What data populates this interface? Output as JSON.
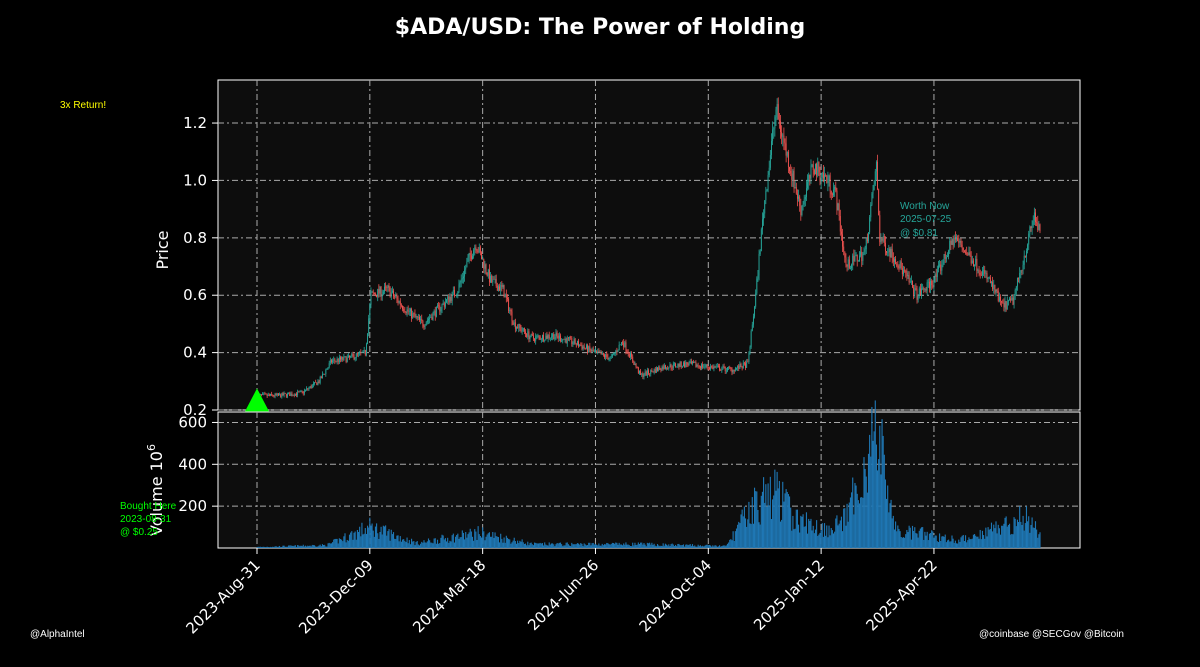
{
  "page": {
    "title": "$ADA/USD: The Power of Holding",
    "credit_left": "@AlphaIntel",
    "credit_right": "@coinbase @SECGov @Bitcoin"
  },
  "annotations": {
    "return_text": "3x Return!",
    "bought_lines": [
      "Bought Here",
      "2023-08-31",
      "@ $0.25"
    ],
    "worth_lines": [
      "Worth Now",
      "2025-07-25",
      "@ $0.81"
    ]
  },
  "colors": {
    "up": "#26a69a",
    "down": "#ef5350",
    "volume": "#1f77b4",
    "marker": "#00ff00",
    "return_text": "#ffff00",
    "bought_text": "#00ff00",
    "worth_text": "#26a69a",
    "panel_bg": "#0d0d0d"
  },
  "chart_data": {
    "type": "candlestick",
    "title": "$ADA/USD: The Power of Holding",
    "x_range": [
      "2023-08-31",
      "2025-07-25"
    ],
    "x_ticks": [
      "2023-Aug-31",
      "2023-Dec-09",
      "2024-Mar-18",
      "2024-Jun-26",
      "2024-Oct-04",
      "2025-Jan-12",
      "2025-Apr-22"
    ],
    "price_panel": {
      "ylabel": "Price",
      "ylim": [
        0.2,
        1.35
      ],
      "yticks": [
        "0.2",
        "0.4",
        "0.6",
        "0.8",
        "1.0",
        "1.2"
      ],
      "close_path": [
        [
          "2023-08-31",
          0.25
        ],
        [
          "2023-09-20",
          0.25
        ],
        [
          "2023-10-10",
          0.26
        ],
        [
          "2023-10-25",
          0.3
        ],
        [
          "2023-11-05",
          0.37
        ],
        [
          "2023-11-20",
          0.38
        ],
        [
          "2023-12-05",
          0.4
        ],
        [
          "2023-12-10",
          0.6
        ],
        [
          "2023-12-25",
          0.62
        ],
        [
          "2024-01-10",
          0.55
        ],
        [
          "2024-01-25",
          0.5
        ],
        [
          "2024-02-10",
          0.56
        ],
        [
          "2024-02-25",
          0.62
        ],
        [
          "2024-03-05",
          0.72
        ],
        [
          "2024-03-12",
          0.78
        ],
        [
          "2024-03-25",
          0.65
        ],
        [
          "2024-04-05",
          0.62
        ],
        [
          "2024-04-15",
          0.5
        ],
        [
          "2024-05-01",
          0.45
        ],
        [
          "2024-05-20",
          0.46
        ],
        [
          "2024-06-10",
          0.43
        ],
        [
          "2024-06-25",
          0.4
        ],
        [
          "2024-07-10",
          0.38
        ],
        [
          "2024-07-20",
          0.44
        ],
        [
          "2024-08-05",
          0.32
        ],
        [
          "2024-08-25",
          0.35
        ],
        [
          "2024-09-15",
          0.36
        ],
        [
          "2024-10-05",
          0.35
        ],
        [
          "2024-10-25",
          0.34
        ],
        [
          "2024-11-08",
          0.36
        ],
        [
          "2024-11-15",
          0.6
        ],
        [
          "2024-11-22",
          0.9
        ],
        [
          "2024-12-03",
          1.25
        ],
        [
          "2024-12-12",
          1.1
        ],
        [
          "2024-12-25",
          0.9
        ],
        [
          "2025-01-05",
          1.05
        ],
        [
          "2025-01-18",
          1.0
        ],
        [
          "2025-01-25",
          0.95
        ],
        [
          "2025-02-03",
          0.7
        ],
        [
          "2025-02-20",
          0.75
        ],
        [
          "2025-03-02",
          1.05
        ],
        [
          "2025-03-05",
          0.8
        ],
        [
          "2025-03-20",
          0.72
        ],
        [
          "2025-04-07",
          0.6
        ],
        [
          "2025-04-22",
          0.65
        ],
        [
          "2025-05-10",
          0.8
        ],
        [
          "2025-05-25",
          0.73
        ],
        [
          "2025-06-10",
          0.65
        ],
        [
          "2025-06-22",
          0.56
        ],
        [
          "2025-07-01",
          0.58
        ],
        [
          "2025-07-10",
          0.72
        ],
        [
          "2025-07-20",
          0.88
        ],
        [
          "2025-07-25",
          0.81
        ]
      ]
    },
    "volume_panel": {
      "ylabel": "Volume  10^6",
      "ylim": [
        0,
        650
      ],
      "yticks": [
        "200",
        "400",
        "600"
      ],
      "level_path": [
        [
          "2023-08-31",
          5
        ],
        [
          "2023-11-01",
          15
        ],
        [
          "2023-12-09",
          110
        ],
        [
          "2024-01-20",
          25
        ],
        [
          "2024-03-15",
          80
        ],
        [
          "2024-05-01",
          20
        ],
        [
          "2024-08-05",
          20
        ],
        [
          "2024-10-20",
          10
        ],
        [
          "2024-11-12",
          220
        ],
        [
          "2024-12-03",
          300
        ],
        [
          "2024-12-20",
          150
        ],
        [
          "2025-01-15",
          100
        ],
        [
          "2025-02-03",
          150
        ],
        [
          "2025-03-02",
          620
        ],
        [
          "2025-03-20",
          80
        ],
        [
          "2025-04-07",
          80
        ],
        [
          "2025-05-15",
          40
        ],
        [
          "2025-07-15",
          170
        ],
        [
          "2025-07-25",
          60
        ]
      ]
    },
    "buy_marker": {
      "date": "2023-08-31",
      "price": 0.23
    }
  }
}
